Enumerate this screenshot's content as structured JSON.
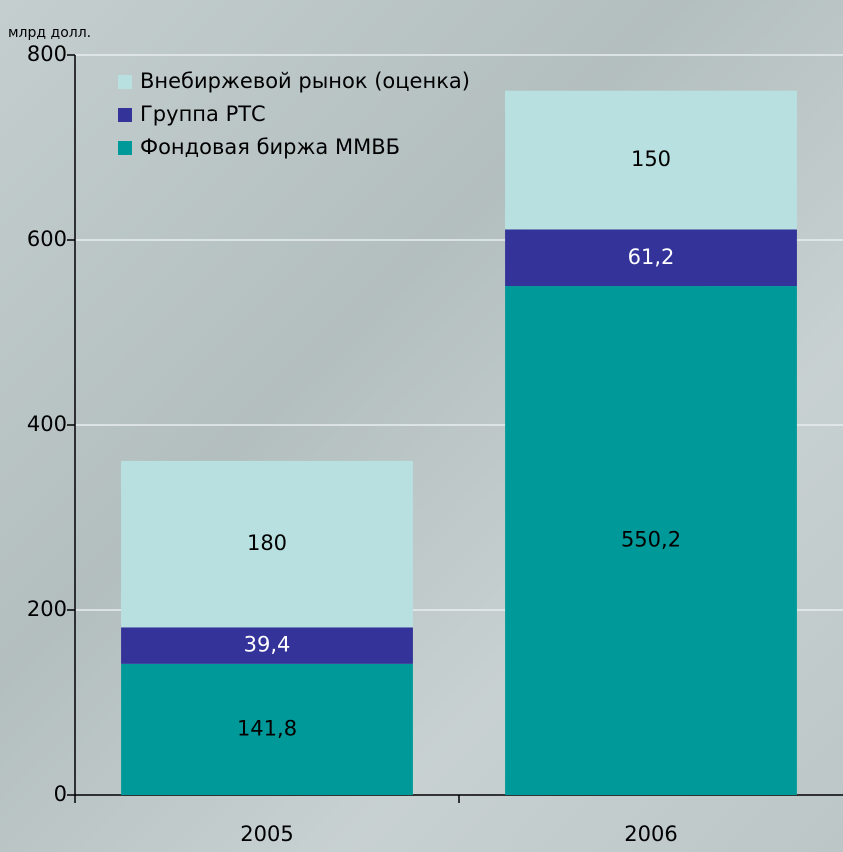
{
  "chart_data": {
    "type": "stacked_bar",
    "y_axis_label": "млрд долл.",
    "categories": [
      "2005",
      "2006"
    ],
    "series": [
      {
        "name": "Фондовая биржа ММВБ",
        "color": "#009999",
        "values": [
          141.8,
          550.2
        ],
        "value_labels": [
          "141,8",
          "550,2"
        ]
      },
      {
        "name": "Группа РТС",
        "color": "#333399",
        "values": [
          39.4,
          61.2
        ],
        "value_labels": [
          "39,4",
          "61,2"
        ]
      },
      {
        "name": "Внебиржевой рынок (оценка)",
        "color": "#b8e0e0",
        "values": [
          180,
          150
        ],
        "value_labels": [
          "180",
          "150"
        ]
      }
    ],
    "ylim": [
      0,
      800
    ],
    "yticks": [
      0,
      200,
      400,
      600,
      800
    ],
    "grid": true,
    "legend": "top-left"
  }
}
